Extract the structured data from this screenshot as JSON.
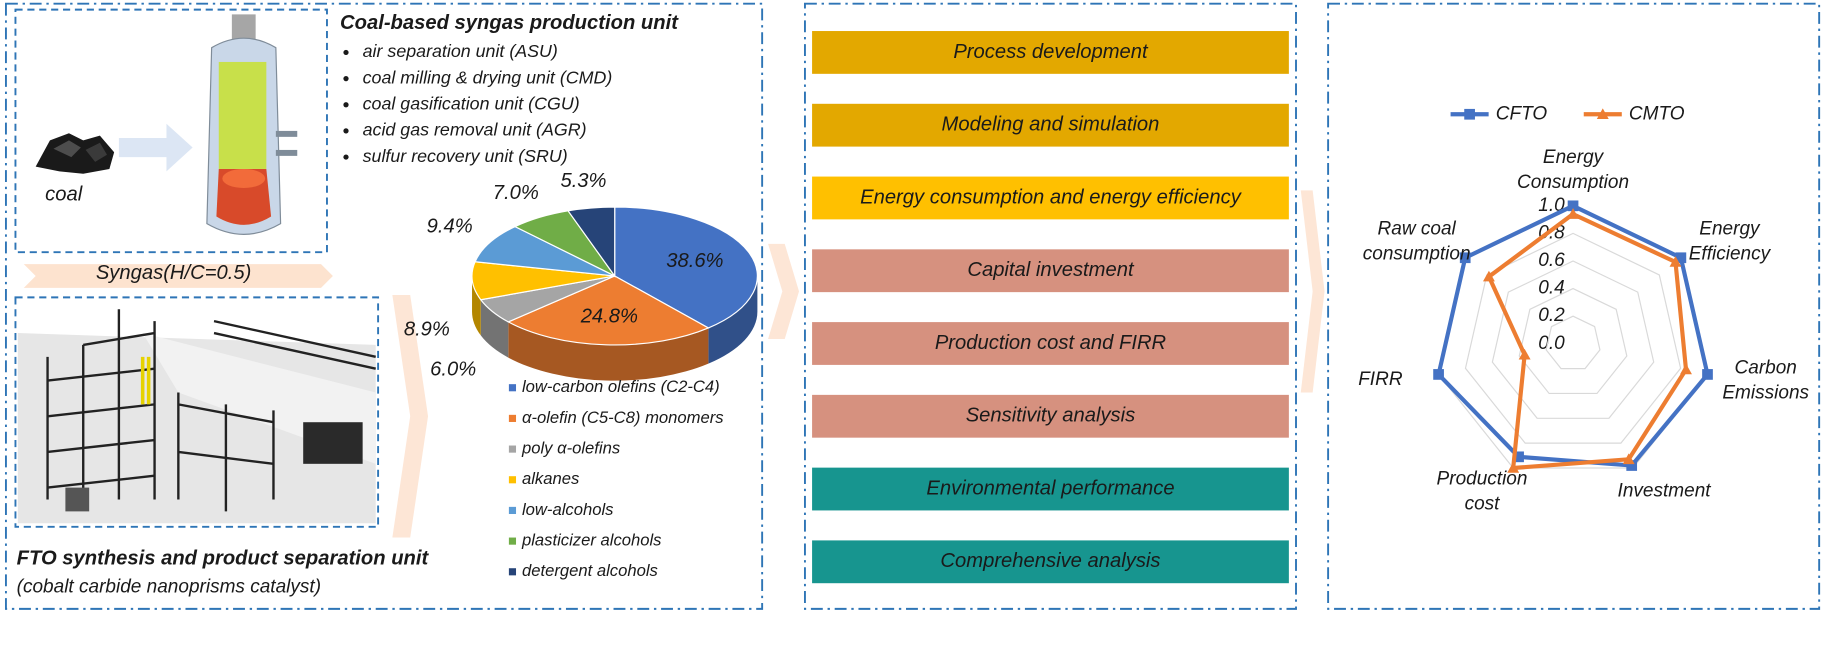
{
  "syngas_unit": {
    "title": "Coal-based syngas production unit",
    "items": [
      "air separation unit (ASU)",
      "coal milling & drying unit (CMD)",
      "coal gasification unit (CGU)",
      "acid gas removal unit (AGR)",
      "sulfur recovery unit (SRU)"
    ]
  },
  "coal_label": "coal",
  "syngas_label": "Syngas(H/C=0.5)",
  "fto_unit": {
    "title": "FTO synthesis and product separation unit",
    "subtitle": "(cobalt carbide nanoprisms catalyst)"
  },
  "analysis_steps": [
    {
      "label": "Process development",
      "color": "#e3a800"
    },
    {
      "label": "Modeling and simulation",
      "color": "#e3a800"
    },
    {
      "label": "Energy consumption and energy efficiency",
      "color": "#ffc000"
    },
    {
      "label": "Capital investment",
      "color": "#d6917f"
    },
    {
      "label": "Production cost and FIRR",
      "color": "#d6917f"
    },
    {
      "label": "Sensitivity analysis",
      "color": "#d6917f"
    },
    {
      "label": "Environmental performance",
      "color": "#17958f"
    },
    {
      "label": "Comprehensive analysis",
      "color": "#17958f"
    }
  ],
  "chart_data": [
    {
      "type": "pie",
      "categories": [
        "low-carbon olefins (C2-C4)",
        "α-olefin (C5-C8) monomers",
        "poly α-olefins",
        "alkanes",
        "low-alcohols",
        "plasticizer alcohols",
        "detergent alcohols"
      ],
      "values": [
        38.6,
        24.8,
        6.0,
        8.9,
        9.4,
        7.0,
        5.3
      ],
      "value_labels": [
        "38.6%",
        "24.8%",
        "6.0%",
        "8.9%",
        "9.4%",
        "7.0%",
        "5.3%"
      ],
      "colors": [
        "#4472c4",
        "#ed7d31",
        "#a5a5a5",
        "#ffc000",
        "#5b9bd5",
        "#70ad47",
        "#264478"
      ]
    },
    {
      "type": "radar",
      "categories": [
        "Energy Consumption",
        "Energy Efficiency",
        "Carbon Emissions",
        "Investment",
        "Production cost",
        "FIRR",
        "Raw coal consumption"
      ],
      "series": [
        {
          "name": "CFTO",
          "color": "#4472c4",
          "values": [
            1.0,
            1.0,
            1.0,
            0.98,
            0.91,
            1.0,
            1.0
          ]
        },
        {
          "name": "CMTO",
          "color": "#ed7d31",
          "values": [
            0.94,
            0.95,
            0.84,
            0.93,
            1.0,
            0.36,
            0.78
          ]
        }
      ],
      "ylim": [
        0,
        1
      ],
      "yticks": [
        {
          "value": 0,
          "label": "0.0"
        },
        0.2,
        0.4,
        0.6,
        0.8,
        {
          "value": 1,
          "label": "1.0"
        }
      ],
      "grid": true,
      "legend": "top"
    }
  ]
}
